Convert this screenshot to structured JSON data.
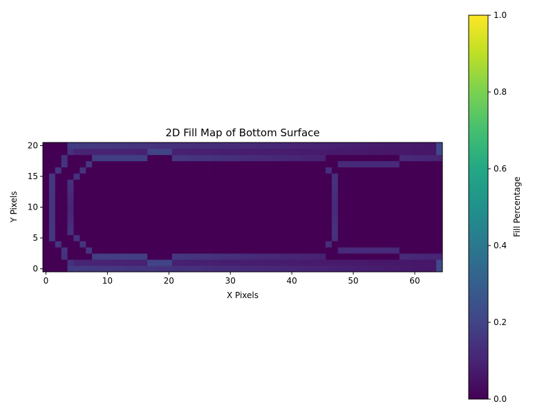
{
  "chart_data": {
    "type": "heatmap",
    "title": "2D Fill Map of Bottom Surface",
    "xlabel": "X Pixels",
    "ylabel": "Y Pixels",
    "xlim": [
      -0.5,
      64.5
    ],
    "ylim": [
      -0.5,
      20.5
    ],
    "origin": "lower",
    "xticks": [
      0,
      10,
      20,
      30,
      40,
      50,
      60
    ],
    "yticks": [
      0,
      5,
      10,
      15,
      20
    ],
    "colormap": "viridis",
    "grid": false,
    "colorbar": {
      "label": "Fill Percentage",
      "min": 0.0,
      "max": 1.0,
      "ticks": [
        "0.0",
        "0.2",
        "0.4",
        "0.6",
        "0.8",
        "1.0"
      ]
    },
    "grid_size": [
      65,
      21
    ],
    "background_value": 0.0,
    "segments": [
      {
        "name": "outer-bottom",
        "points": [
          [
            4,
            0
          ],
          [
            63,
            0
          ]
        ],
        "values": [
          0.17,
          0.06
        ]
      },
      {
        "name": "outer-top",
        "points": [
          [
            4,
            20
          ],
          [
            63,
            20
          ]
        ],
        "values": [
          0.17,
          0.06
        ]
      },
      {
        "name": "outer-bottom-inner",
        "points": [
          [
            4,
            1
          ],
          [
            63,
            1
          ]
        ],
        "values": [
          0.1,
          0.06
        ]
      },
      {
        "name": "outer-top-inner",
        "points": [
          [
            4,
            19
          ],
          [
            63,
            19
          ]
        ],
        "values": [
          0.1,
          0.06
        ]
      },
      {
        "name": "right-edge-bottom",
        "points": [
          [
            64,
            0
          ],
          [
            64,
            1
          ]
        ],
        "values": [
          0.22,
          0.22
        ]
      },
      {
        "name": "right-edge-top",
        "points": [
          [
            64,
            19
          ],
          [
            64,
            20
          ]
        ],
        "values": [
          0.22,
          0.22
        ]
      },
      {
        "name": "left-arc-bottom",
        "points": [
          [
            4,
            1
          ],
          [
            1,
            5
          ],
          [
            1,
            10
          ]
        ],
        "values": [
          0.14,
          0.16,
          0.15
        ]
      },
      {
        "name": "left-arc-top",
        "points": [
          [
            4,
            19
          ],
          [
            1,
            15
          ],
          [
            1,
            10
          ]
        ],
        "values": [
          0.14,
          0.16,
          0.15
        ]
      },
      {
        "name": "left-inner-bottom",
        "points": [
          [
            8,
            2
          ],
          [
            4,
            6
          ],
          [
            4,
            10
          ]
        ],
        "values": [
          0.16,
          0.14,
          0.1
        ]
      },
      {
        "name": "left-inner-top",
        "points": [
          [
            8,
            18
          ],
          [
            4,
            14
          ],
          [
            4,
            10
          ]
        ],
        "values": [
          0.16,
          0.14,
          0.1
        ]
      },
      {
        "name": "inner-bottom-a",
        "points": [
          [
            8,
            2
          ],
          [
            16,
            2
          ]
        ],
        "values": [
          0.18,
          0.18
        ]
      },
      {
        "name": "inner-top-a",
        "points": [
          [
            8,
            18
          ],
          [
            16,
            18
          ]
        ],
        "values": [
          0.18,
          0.18
        ]
      },
      {
        "name": "inner-bottom-b",
        "points": [
          [
            21,
            2
          ],
          [
            45,
            2
          ]
        ],
        "values": [
          0.16,
          0.09
        ]
      },
      {
        "name": "inner-top-b",
        "points": [
          [
            21,
            18
          ],
          [
            45,
            18
          ]
        ],
        "values": [
          0.16,
          0.09
        ]
      },
      {
        "name": "gap-bottom",
        "points": [
          [
            17,
            1
          ],
          [
            20,
            1
          ]
        ],
        "values": [
          0.2,
          0.2
        ]
      },
      {
        "name": "gap-top",
        "points": [
          [
            17,
            19
          ],
          [
            20,
            19
          ]
        ],
        "values": [
          0.2,
          0.2
        ]
      },
      {
        "name": "right-pocket-left-bottom",
        "points": [
          [
            46,
            4
          ],
          [
            47,
            6
          ],
          [
            47,
            10
          ]
        ],
        "values": [
          0.13,
          0.14,
          0.12
        ]
      },
      {
        "name": "right-pocket-left-top",
        "points": [
          [
            46,
            16
          ],
          [
            47,
            14
          ],
          [
            47,
            10
          ]
        ],
        "values": [
          0.13,
          0.14,
          0.12
        ]
      },
      {
        "name": "right-pocket-bottom",
        "points": [
          [
            48,
            3
          ],
          [
            57,
            3
          ]
        ],
        "values": [
          0.12,
          0.12
        ]
      },
      {
        "name": "right-pocket-top",
        "points": [
          [
            48,
            17
          ],
          [
            57,
            17
          ]
        ],
        "values": [
          0.12,
          0.12
        ]
      },
      {
        "name": "right-pocket-step-bottom",
        "points": [
          [
            58,
            2
          ],
          [
            64,
            2
          ]
        ],
        "values": [
          0.12,
          0.1
        ]
      },
      {
        "name": "right-pocket-step-top",
        "points": [
          [
            58,
            18
          ],
          [
            64,
            18
          ]
        ],
        "values": [
          0.12,
          0.1
        ]
      }
    ]
  }
}
